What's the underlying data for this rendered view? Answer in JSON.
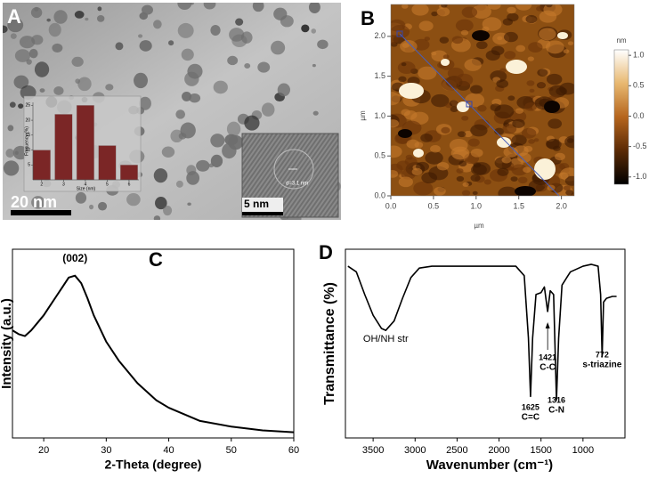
{
  "chart_data": [
    {
      "type": "image",
      "label": "A",
      "scale_bar": "20 nm",
      "inset_scale_bar": "5 nm",
      "inset_annotation": "d=3.1 nm"
    },
    {
      "type": "bar",
      "xlabel": "Size (nm)",
      "ylabel": "Frequency (%)",
      "x": [
        2,
        3,
        4,
        5,
        6
      ],
      "values": [
        10,
        22,
        25,
        11.5,
        5
      ],
      "color": "#7b2626",
      "xlim": [
        1.6,
        6.45
      ],
      "ylim": [
        0,
        26
      ],
      "xticks": [
        2,
        3,
        4,
        5,
        6
      ],
      "yticks": [
        5,
        10,
        15,
        20,
        25
      ]
    },
    {
      "type": "image",
      "label": "B",
      "xlabel": "µm",
      "ylabel": "µm",
      "xlim": [
        0,
        2.15
      ],
      "ylim": [
        0,
        2.4
      ],
      "xticks": [
        {
          "value": 0,
          "label": "0.0"
        },
        0.5,
        {
          "value": 1,
          "label": "1.0"
        },
        1.5,
        {
          "value": 2,
          "label": "2.0"
        }
      ],
      "yticks": [
        {
          "value": 0,
          "label": "0.0"
        },
        0.5,
        {
          "value": 1,
          "label": "1.0"
        },
        1.5,
        {
          "value": 2,
          "label": "2.0"
        }
      ],
      "colorbar": {
        "label": "nm",
        "lim": [
          -1.12,
          1.09
        ],
        "ticks": [
          {
            "value": 1,
            "label": "1.0"
          },
          0.5,
          {
            "value": 0,
            "label": "0.0"
          },
          -0.5,
          {
            "value": -1,
            "label": "-1.0"
          }
        ],
        "colors": [
          "#000000",
          "#5a2a05",
          "#b5651d",
          "#e8b870",
          "#ffffff"
        ]
      }
    },
    {
      "type": "line",
      "label": "C",
      "xlabel": "2-Theta (degree)",
      "ylabel": "Intensity (a.u.)",
      "annotation": {
        "x": 25,
        "text": "(002)"
      },
      "x": [
        15,
        16,
        17,
        18,
        19,
        20,
        21,
        22,
        23,
        24,
        25,
        26,
        27,
        28,
        30,
        32,
        35,
        38,
        40,
        45,
        50,
        55,
        60
      ],
      "values": [
        57,
        55,
        54,
        57,
        61,
        65,
        70,
        75,
        80,
        85,
        86,
        82,
        74,
        65,
        51,
        41,
        29,
        20,
        16,
        9,
        6,
        4,
        3
      ],
      "color": "#000000",
      "xlim": [
        15,
        60
      ],
      "ylim": [
        0,
        100
      ],
      "xticks": [
        20,
        30,
        40,
        50,
        60
      ]
    },
    {
      "type": "line",
      "label": "D",
      "xlabel": "Wavenumber (cm⁻¹)",
      "ylabel": "Transmittance (%)",
      "x": [
        3800,
        3700,
        3600,
        3500,
        3400,
        3350,
        3250,
        3150,
        3050,
        2950,
        2800,
        2500,
        2000,
        1800,
        1700,
        1650,
        1625,
        1600,
        1560,
        1500,
        1460,
        1421,
        1390,
        1350,
        1316,
        1290,
        1250,
        1150,
        1000,
        900,
        820,
        790,
        772,
        755,
        720,
        650,
        600
      ],
      "values": [
        91,
        88,
        76,
        65,
        58,
        57,
        62,
        74,
        85,
        90,
        91,
        91,
        91,
        91,
        86,
        53,
        22,
        53,
        76,
        77,
        80,
        67,
        78,
        76,
        20,
        53,
        81,
        88,
        91,
        92,
        91,
        76,
        43,
        72,
        74,
        75,
        75
      ],
      "color": "#000000",
      "xlim": [
        3830,
        500
      ],
      "ylim": [
        0,
        100
      ],
      "xticks": [
        3500,
        3000,
        2500,
        2000,
        1500,
        1000
      ],
      "annotations": [
        {
          "x": 3350,
          "lines": [
            "OH/NH str"
          ]
        },
        {
          "x": 1625,
          "lines": [
            "1625",
            "C=C"
          ]
        },
        {
          "x": 1421,
          "lines": [
            "1421",
            "C-C"
          ]
        },
        {
          "x": 1316,
          "lines": [
            "1316",
            "C-N"
          ]
        },
        {
          "x": 772,
          "lines": [
            "772",
            "s-triazine"
          ]
        }
      ]
    }
  ]
}
